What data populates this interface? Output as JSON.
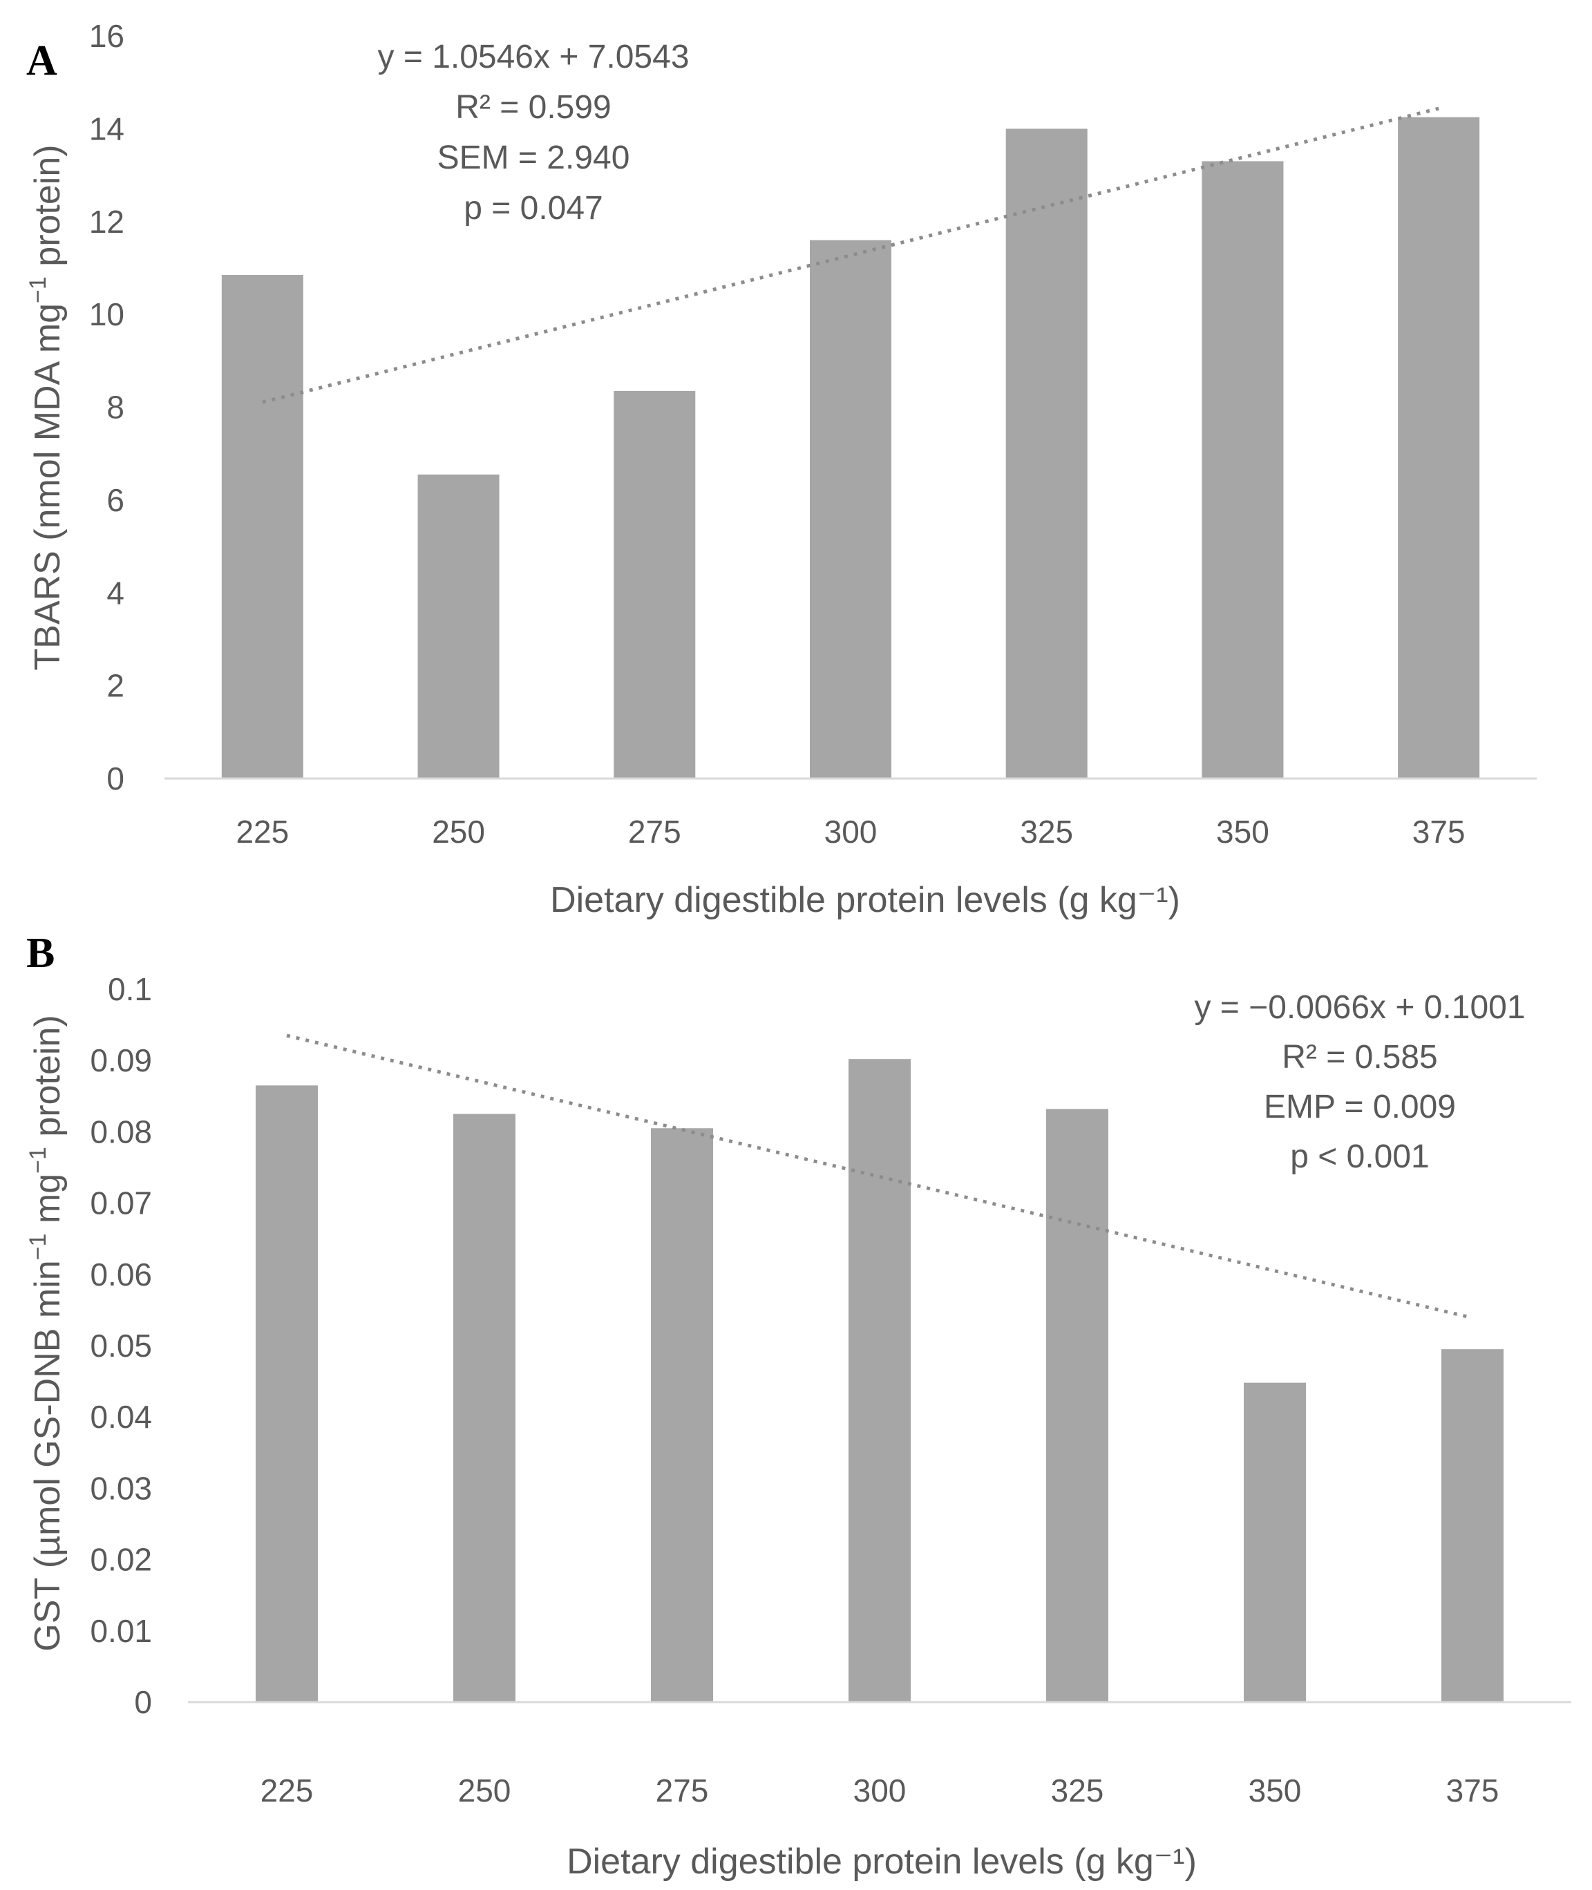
{
  "colors": {
    "bar": "#a6a6a6",
    "trendline": "#8c8c8c",
    "axis_line": "#d9d9d9",
    "text": "#595959"
  },
  "chart_data": [
    {
      "type": "bar",
      "panel_label": "A",
      "categories": [
        "225",
        "250",
        "275",
        "300",
        "325",
        "350",
        "375"
      ],
      "values": [
        10.85,
        6.55,
        8.35,
        11.6,
        14.0,
        13.3,
        14.25
      ],
      "y_ticks": [
        "0",
        "2",
        "4",
        "6",
        "8",
        "10",
        "12",
        "14",
        "16"
      ],
      "ylim": [
        0,
        16
      ],
      "ylabel_main": "TBARS (nmol MDA mg",
      "ylabel_sup": "−1",
      "ylabel_end": " protein)",
      "xlabel": "Dietary digestible protein levels (g kg⁻¹)",
      "trendline": {
        "slope": 1.0546,
        "intercept": 7.0543,
        "style": "dotted"
      },
      "annotations": [
        "y = 1.0546x + 7.0543",
        "R² = 0.599",
        "SEM = 2.940",
        "p = 0.047"
      ],
      "grid": false
    },
    {
      "type": "bar",
      "panel_label": "B",
      "categories": [
        "225",
        "250",
        "275",
        "300",
        "325",
        "350",
        "375"
      ],
      "values": [
        0.0865,
        0.0825,
        0.0805,
        0.0902,
        0.0832,
        0.0448,
        0.0495
      ],
      "y_ticks": [
        "0",
        "0.01",
        "0.02",
        "0.03",
        "0.04",
        "0.05",
        "0.06",
        "0.07",
        "0.08",
        "0.09",
        "0.1"
      ],
      "ylim": [
        0,
        0.1
      ],
      "ylabel_main": "GST (µmol GS-DNB min",
      "ylabel_sup": "−1",
      "ylabel_mid": " mg",
      "ylabel_sup2": "−1",
      "ylabel_end": " protein)",
      "xlabel": "Dietary digestible protein levels (g kg⁻¹)",
      "trendline": {
        "slope": -0.0066,
        "intercept": 0.1001,
        "style": "dotted"
      },
      "annotations": [
        "y = −0.0066x + 0.1001",
        "R² = 0.585",
        "EMP = 0.009",
        "p < 0.001"
      ],
      "grid": false
    }
  ]
}
